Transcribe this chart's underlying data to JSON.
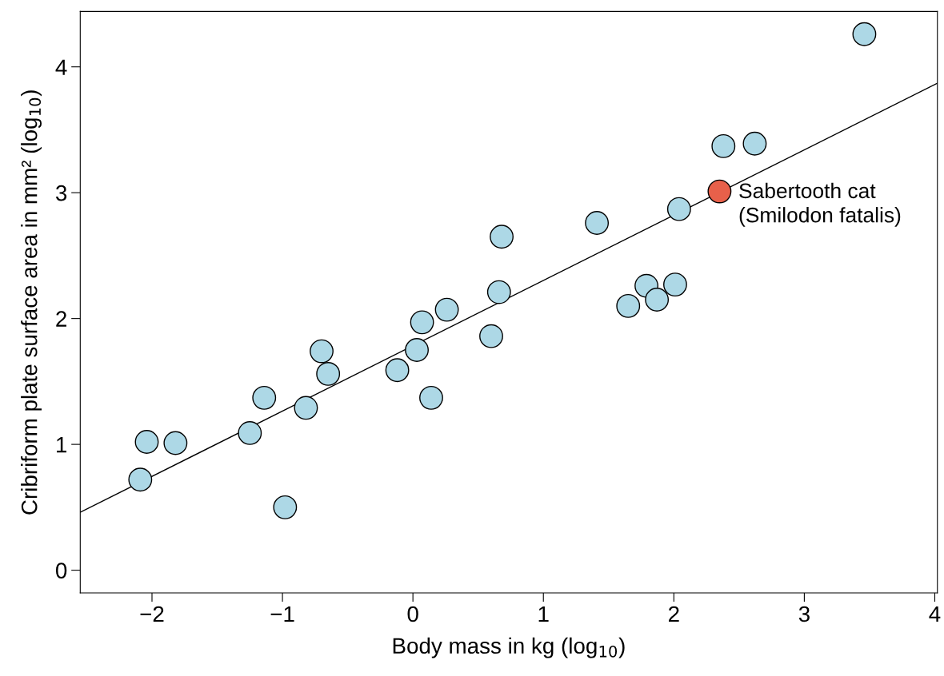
{
  "chart_data": {
    "type": "scatter",
    "xlabel": "Body mass in kg (log$_{10}$)",
    "ylabel": "Cribriform plate surface area in mm² (log$_{10}$)",
    "xlim": [
      -2.55,
      4.02
    ],
    "ylim": [
      -0.18,
      4.44
    ],
    "xticks": [
      {
        "value": -2,
        "label": "−2"
      },
      {
        "value": -1,
        "label": "−1"
      },
      0,
      1,
      2,
      3,
      4
    ],
    "yticks": [
      0,
      1,
      2,
      3,
      4
    ],
    "grid": false,
    "legend": false,
    "marker": "circle",
    "series": [
      {
        "type": "line",
        "marker": "none",
        "color": "#000000",
        "x": [
          -2.55,
          4.02
        ],
        "values": [
          0.46,
          3.87
        ]
      },
      {
        "color": "#add8e6",
        "x": [
          3.46,
          2.38,
          2.62,
          2.04,
          1.41,
          0.68,
          0.66,
          1.79,
          2.01,
          1.65,
          1.87,
          0.26,
          0.07,
          0.6,
          0.03,
          -0.12,
          0.14,
          -0.7,
          -0.65,
          -1.14,
          -0.82,
          -1.25,
          -2.04,
          -1.82,
          -2.09,
          -0.98
        ],
        "values": [
          4.26,
          3.37,
          3.39,
          2.87,
          2.76,
          2.65,
          2.21,
          2.26,
          2.27,
          2.1,
          2.15,
          2.07,
          1.97,
          1.86,
          1.75,
          1.59,
          1.37,
          1.74,
          1.56,
          1.37,
          1.29,
          1.09,
          1.02,
          1.01,
          0.72,
          0.5
        ]
      },
      {
        "color": "#e8604a",
        "x": [
          2.35
        ],
        "values": [
          3.01
        ]
      }
    ],
    "annotations": [
      {
        "text": "Sabertooth cat\n(Smilodon fatalis)",
        "x": 2.35,
        "y": 3.01
      }
    ]
  }
}
